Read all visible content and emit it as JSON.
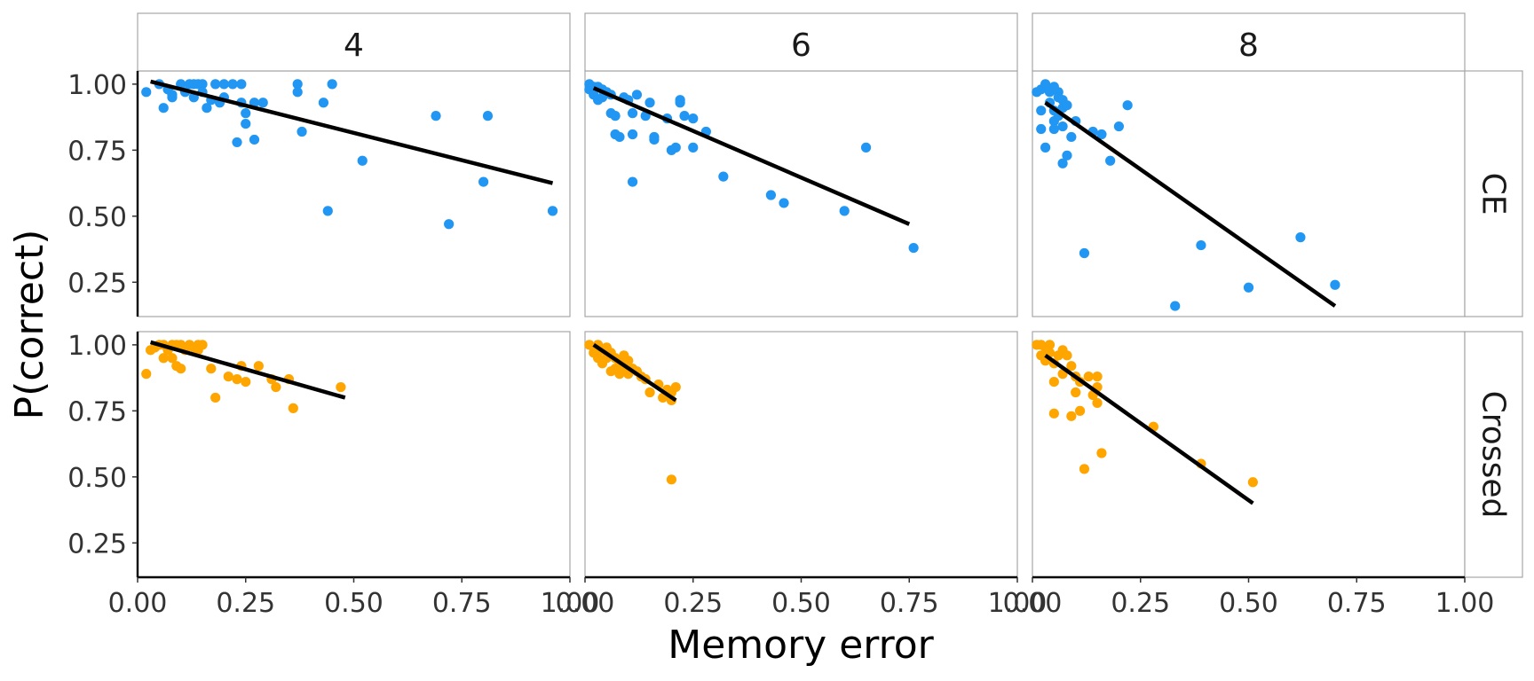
{
  "chart_data": {
    "type": "scatter",
    "xlabel": "Memory error",
    "ylabel": "P(correct)",
    "col_facets": [
      "4",
      "6",
      "8"
    ],
    "row_facets": [
      "CE",
      "Crossed"
    ],
    "xlim": [
      0,
      1
    ],
    "ylim": [
      0.12,
      1.05
    ],
    "x_ticks": [
      0,
      0.25,
      0.5,
      0.75,
      1
    ],
    "x_tick_labels": [
      "0.00",
      "0.25",
      "0.50",
      "0.75",
      "1.00"
    ],
    "y_ticks": [
      0.25,
      0.5,
      0.75,
      1
    ],
    "y_tick_labels": [
      "0.25",
      "0.50",
      "0.75",
      "1.00"
    ],
    "grid": false,
    "legend": "none",
    "colors": {
      "CE": "#2196F3",
      "Crossed": "#FFA500",
      "fit": "#000000"
    },
    "panels": [
      {
        "col": "4",
        "row": "CE",
        "fit": {
          "x": [
            0.03,
            0.96
          ],
          "y": [
            1.01,
            0.625
          ]
        },
        "points": [
          [
            0.02,
            0.97
          ],
          [
            0.05,
            1.0
          ],
          [
            0.06,
            0.91
          ],
          [
            0.07,
            0.98
          ],
          [
            0.08,
            0.96
          ],
          [
            0.08,
            0.95
          ],
          [
            0.1,
            1.0
          ],
          [
            0.11,
            0.97
          ],
          [
            0.12,
            1.0
          ],
          [
            0.13,
            1.0
          ],
          [
            0.13,
            0.95
          ],
          [
            0.14,
            1.0
          ],
          [
            0.15,
            1.0
          ],
          [
            0.15,
            0.97
          ],
          [
            0.16,
            0.91
          ],
          [
            0.17,
            0.94
          ],
          [
            0.18,
            1.0
          ],
          [
            0.19,
            0.93
          ],
          [
            0.2,
            1.0
          ],
          [
            0.2,
            0.95
          ],
          [
            0.22,
            1.0
          ],
          [
            0.24,
            1.0
          ],
          [
            0.24,
            0.93
          ],
          [
            0.25,
            0.89
          ],
          [
            0.25,
            0.85
          ],
          [
            0.23,
            0.78
          ],
          [
            0.27,
            0.79
          ],
          [
            0.27,
            0.93
          ],
          [
            0.29,
            0.93
          ],
          [
            0.37,
            1.0
          ],
          [
            0.37,
            0.97
          ],
          [
            0.38,
            0.82
          ],
          [
            0.43,
            0.93
          ],
          [
            0.44,
            0.52
          ],
          [
            0.45,
            1.0
          ],
          [
            0.52,
            0.71
          ],
          [
            0.69,
            0.88
          ],
          [
            0.72,
            0.47
          ],
          [
            0.8,
            0.63
          ],
          [
            0.81,
            0.88
          ],
          [
            0.96,
            0.52
          ]
        ]
      },
      {
        "col": "6",
        "row": "CE",
        "fit": {
          "x": [
            0.02,
            0.75
          ],
          "y": [
            0.985,
            0.47
          ]
        },
        "points": [
          [
            0.01,
            1.0
          ],
          [
            0.01,
            0.98
          ],
          [
            0.02,
            0.99
          ],
          [
            0.02,
            0.96
          ],
          [
            0.03,
            0.94
          ],
          [
            0.03,
            0.99
          ],
          [
            0.04,
            0.98
          ],
          [
            0.04,
            0.95
          ],
          [
            0.05,
            0.97
          ],
          [
            0.06,
            0.96
          ],
          [
            0.06,
            0.89
          ],
          [
            0.07,
            0.88
          ],
          [
            0.07,
            0.81
          ],
          [
            0.08,
            0.8
          ],
          [
            0.09,
            0.95
          ],
          [
            0.1,
            0.94
          ],
          [
            0.11,
            0.81
          ],
          [
            0.11,
            0.89
          ],
          [
            0.12,
            0.96
          ],
          [
            0.14,
            0.88
          ],
          [
            0.15,
            0.93
          ],
          [
            0.16,
            0.79
          ],
          [
            0.16,
            0.8
          ],
          [
            0.19,
            0.87
          ],
          [
            0.2,
            0.75
          ],
          [
            0.21,
            0.76
          ],
          [
            0.22,
            0.93
          ],
          [
            0.22,
            0.94
          ],
          [
            0.23,
            0.88
          ],
          [
            0.25,
            0.87
          ],
          [
            0.25,
            0.76
          ],
          [
            0.28,
            0.82
          ],
          [
            0.11,
            0.63
          ],
          [
            0.32,
            0.65
          ],
          [
            0.43,
            0.58
          ],
          [
            0.46,
            0.55
          ],
          [
            0.6,
            0.52
          ],
          [
            0.65,
            0.76
          ],
          [
            0.76,
            0.38
          ]
        ]
      },
      {
        "col": "8",
        "row": "CE",
        "fit": {
          "x": [
            0.03,
            0.7
          ],
          "y": [
            0.93,
            0.16
          ]
        },
        "points": [
          [
            0.01,
            0.97
          ],
          [
            0.02,
            0.98
          ],
          [
            0.02,
            0.9
          ],
          [
            0.02,
            0.83
          ],
          [
            0.03,
            0.76
          ],
          [
            0.03,
            1.0
          ],
          [
            0.04,
            0.97
          ],
          [
            0.04,
            0.93
          ],
          [
            0.05,
            0.99
          ],
          [
            0.05,
            0.9
          ],
          [
            0.05,
            0.86
          ],
          [
            0.05,
            0.83
          ],
          [
            0.06,
            0.97
          ],
          [
            0.06,
            0.95
          ],
          [
            0.06,
            0.88
          ],
          [
            0.07,
            0.94
          ],
          [
            0.07,
            0.91
          ],
          [
            0.07,
            0.84
          ],
          [
            0.07,
            0.7
          ],
          [
            0.08,
            0.92
          ],
          [
            0.08,
            0.73
          ],
          [
            0.09,
            0.8
          ],
          [
            0.1,
            0.86
          ],
          [
            0.12,
            0.36
          ],
          [
            0.14,
            0.82
          ],
          [
            0.16,
            0.81
          ],
          [
            0.18,
            0.71
          ],
          [
            0.2,
            0.84
          ],
          [
            0.22,
            0.92
          ],
          [
            0.33,
            0.16
          ],
          [
            0.39,
            0.39
          ],
          [
            0.5,
            0.23
          ],
          [
            0.62,
            0.42
          ],
          [
            0.7,
            0.24
          ]
        ]
      },
      {
        "col": "4",
        "row": "Crossed",
        "fit": {
          "x": [
            0.03,
            0.48
          ],
          "y": [
            1.01,
            0.8
          ]
        },
        "points": [
          [
            0.02,
            0.89
          ],
          [
            0.03,
            0.98
          ],
          [
            0.04,
            0.99
          ],
          [
            0.05,
            1.0
          ],
          [
            0.06,
            0.95
          ],
          [
            0.06,
            1.0
          ],
          [
            0.07,
            0.98
          ],
          [
            0.08,
            0.95
          ],
          [
            0.08,
            1.0
          ],
          [
            0.09,
            1.0
          ],
          [
            0.09,
            0.92
          ],
          [
            0.1,
            0.91
          ],
          [
            0.1,
            1.0
          ],
          [
            0.11,
            0.98
          ],
          [
            0.12,
            1.0
          ],
          [
            0.13,
            0.99
          ],
          [
            0.14,
            1.0
          ],
          [
            0.14,
            0.98
          ],
          [
            0.15,
            1.0
          ],
          [
            0.17,
            0.91
          ],
          [
            0.18,
            0.8
          ],
          [
            0.21,
            0.88
          ],
          [
            0.23,
            0.87
          ],
          [
            0.24,
            0.92
          ],
          [
            0.25,
            0.86
          ],
          [
            0.28,
            0.92
          ],
          [
            0.31,
            0.87
          ],
          [
            0.32,
            0.84
          ],
          [
            0.35,
            0.87
          ],
          [
            0.36,
            0.76
          ],
          [
            0.47,
            0.84
          ]
        ]
      },
      {
        "col": "6",
        "row": "Crossed",
        "fit": {
          "x": [
            0.02,
            0.21
          ],
          "y": [
            1.0,
            0.79
          ]
        },
        "points": [
          [
            0.01,
            1.0
          ],
          [
            0.02,
            0.99
          ],
          [
            0.02,
            0.97
          ],
          [
            0.03,
            1.0
          ],
          [
            0.03,
            0.95
          ],
          [
            0.04,
            0.98
          ],
          [
            0.04,
            0.93
          ],
          [
            0.05,
            0.99
          ],
          [
            0.05,
            0.95
          ],
          [
            0.06,
            0.97
          ],
          [
            0.06,
            0.9
          ],
          [
            0.07,
            0.95
          ],
          [
            0.07,
            0.91
          ],
          [
            0.08,
            0.93
          ],
          [
            0.08,
            0.89
          ],
          [
            0.09,
            0.96
          ],
          [
            0.09,
            0.91
          ],
          [
            0.1,
            0.89
          ],
          [
            0.1,
            0.94
          ],
          [
            0.11,
            0.91
          ],
          [
            0.12,
            0.9
          ],
          [
            0.13,
            0.88
          ],
          [
            0.14,
            0.87
          ],
          [
            0.15,
            0.82
          ],
          [
            0.17,
            0.85
          ],
          [
            0.18,
            0.8
          ],
          [
            0.19,
            0.83
          ],
          [
            0.2,
            0.82
          ],
          [
            0.2,
            0.79
          ],
          [
            0.21,
            0.84
          ],
          [
            0.2,
            0.49
          ]
        ]
      },
      {
        "col": "8",
        "row": "Crossed",
        "fit": {
          "x": [
            0.03,
            0.51
          ],
          "y": [
            0.96,
            0.4
          ]
        },
        "points": [
          [
            0.01,
            1.0
          ],
          [
            0.02,
            0.96
          ],
          [
            0.02,
            1.0
          ],
          [
            0.03,
            0.99
          ],
          [
            0.03,
            0.94
          ],
          [
            0.04,
            1.0
          ],
          [
            0.04,
            0.97
          ],
          [
            0.05,
            0.93
          ],
          [
            0.05,
            0.86
          ],
          [
            0.05,
            0.74
          ],
          [
            0.06,
            0.96
          ],
          [
            0.07,
            0.98
          ],
          [
            0.07,
            0.89
          ],
          [
            0.08,
            0.96
          ],
          [
            0.09,
            0.92
          ],
          [
            0.09,
            0.73
          ],
          [
            0.1,
            0.88
          ],
          [
            0.1,
            0.82
          ],
          [
            0.11,
            0.86
          ],
          [
            0.11,
            0.75
          ],
          [
            0.12,
            0.53
          ],
          [
            0.13,
            0.88
          ],
          [
            0.14,
            0.81
          ],
          [
            0.15,
            0.88
          ],
          [
            0.15,
            0.84
          ],
          [
            0.15,
            0.78
          ],
          [
            0.16,
            0.59
          ],
          [
            0.28,
            0.69
          ],
          [
            0.39,
            0.55
          ],
          [
            0.51,
            0.48
          ]
        ]
      }
    ]
  }
}
